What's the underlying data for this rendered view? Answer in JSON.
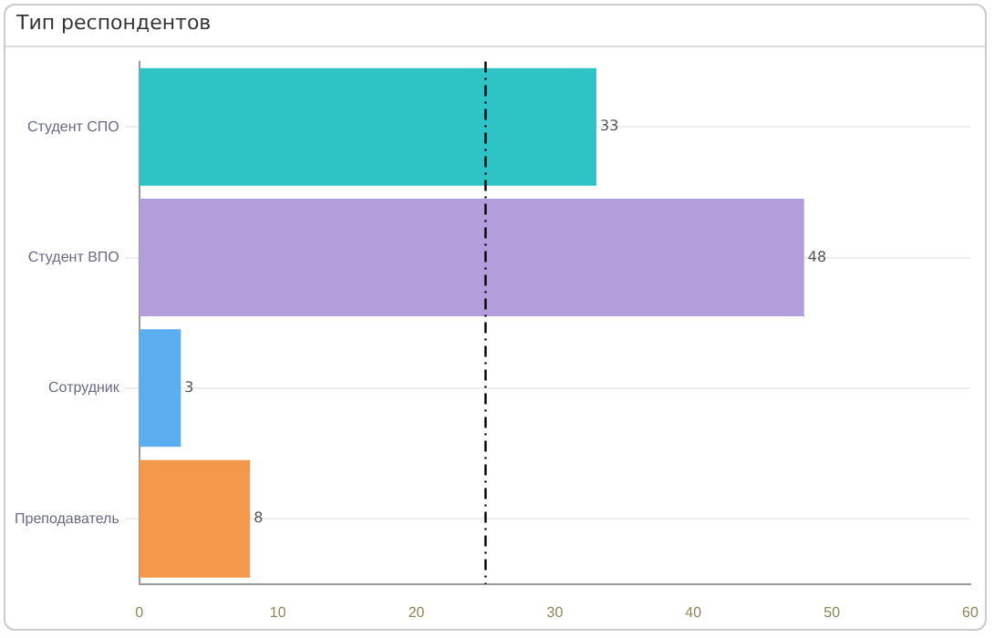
{
  "chart_data": {
    "type": "bar",
    "title": "Тип респондентов",
    "orientation": "horizontal",
    "categories": [
      "Студент СПО",
      "Студент ВПО",
      "Сотрудник",
      "Преподаватель"
    ],
    "values": [
      33,
      48,
      3,
      8
    ],
    "colors": [
      "#2ec4c6",
      "#b39ddb",
      "#5aaef0",
      "#f4994c"
    ],
    "xlim": [
      0,
      60
    ],
    "xticks": [
      0,
      10,
      20,
      30,
      40,
      50,
      60
    ],
    "grid": "y",
    "legend": false,
    "data_labels": true,
    "ref_lines": [
      {
        "axis": "x",
        "value": 25,
        "color": "#000000",
        "line_style": "dashed"
      }
    ]
  }
}
